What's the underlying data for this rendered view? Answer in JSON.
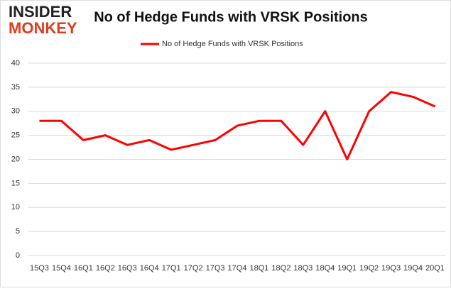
{
  "logo": {
    "line1": "INSIDER",
    "line2": "MONKEY"
  },
  "chart_data": {
    "type": "line",
    "title": "No of Hedge Funds with VRSK Positions",
    "categories": [
      "15Q3",
      "15Q4",
      "16Q1",
      "16Q2",
      "16Q3",
      "16Q4",
      "17Q1",
      "17Q2",
      "17Q3",
      "17Q4",
      "18Q1",
      "18Q2",
      "18Q3",
      "18Q4",
      "19Q1",
      "19Q2",
      "19Q3",
      "19Q4",
      "20Q1"
    ],
    "series": [
      {
        "name": "No of Hedge Funds with VRSK Positions",
        "color": "#ff0000",
        "values": [
          28,
          28,
          24,
          25,
          23,
          24,
          22,
          23,
          24,
          27,
          28,
          28,
          23,
          30,
          20,
          30,
          34,
          33,
          31
        ]
      }
    ],
    "ylim": [
      0,
      40
    ],
    "yticks": [
      0,
      5,
      10,
      15,
      20,
      25,
      30,
      35,
      40
    ],
    "grid": true,
    "legend": "top"
  }
}
